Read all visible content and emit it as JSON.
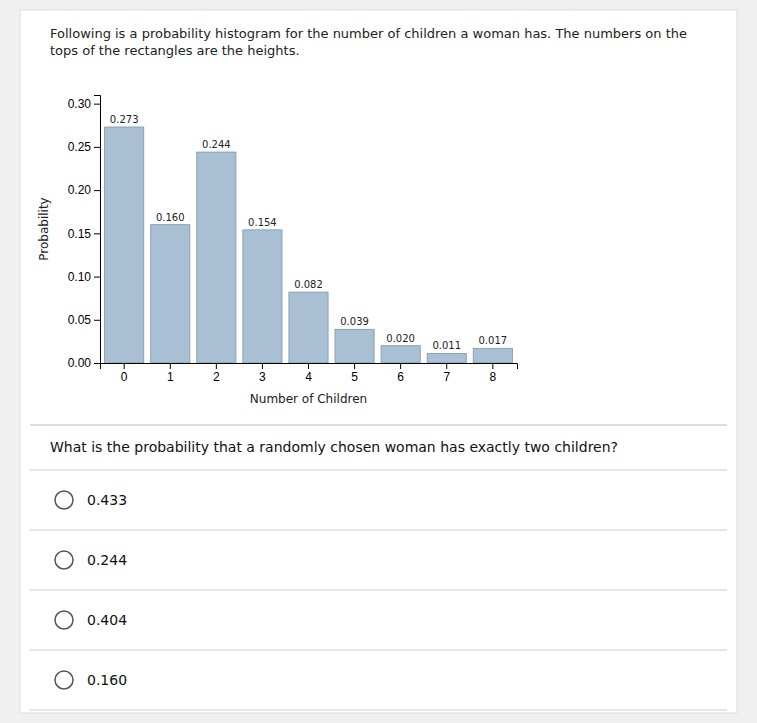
{
  "chart_data": {
    "type": "bar",
    "title": "Following is a probability histogram for the number of children a woman has. The numbers on the tops of the rectangles are the heights.",
    "xlabel": "Number of Children",
    "ylabel": "Probability",
    "categories": [
      0,
      1,
      2,
      3,
      4,
      5,
      6,
      7,
      8
    ],
    "values": [
      0.273,
      0.16,
      0.244,
      0.154,
      0.082,
      0.039,
      0.02,
      0.011,
      0.017
    ],
    "value_labels": [
      "0.273",
      "0.160",
      "0.244",
      "0.154",
      "0.082",
      "0.039",
      "0.020",
      "0.011",
      "0.017"
    ],
    "data_labels": true,
    "color": "#a8bfd4",
    "ylim": [
      0,
      0.31
    ],
    "yticks": [
      {
        "value": 0,
        "label": "0.00"
      },
      0.05,
      {
        "value": 0.1,
        "label": "0.10"
      },
      0.15,
      {
        "value": 0.2,
        "label": "0.20"
      },
      0.25,
      {
        "value": 0.3,
        "label": "0.30"
      }
    ],
    "grid": false,
    "annotations": [
      "What is the probability that a randomly chosen woman has exactly two children?",
      "0.433",
      "0.244",
      "0.404",
      "0.160"
    ]
  }
}
